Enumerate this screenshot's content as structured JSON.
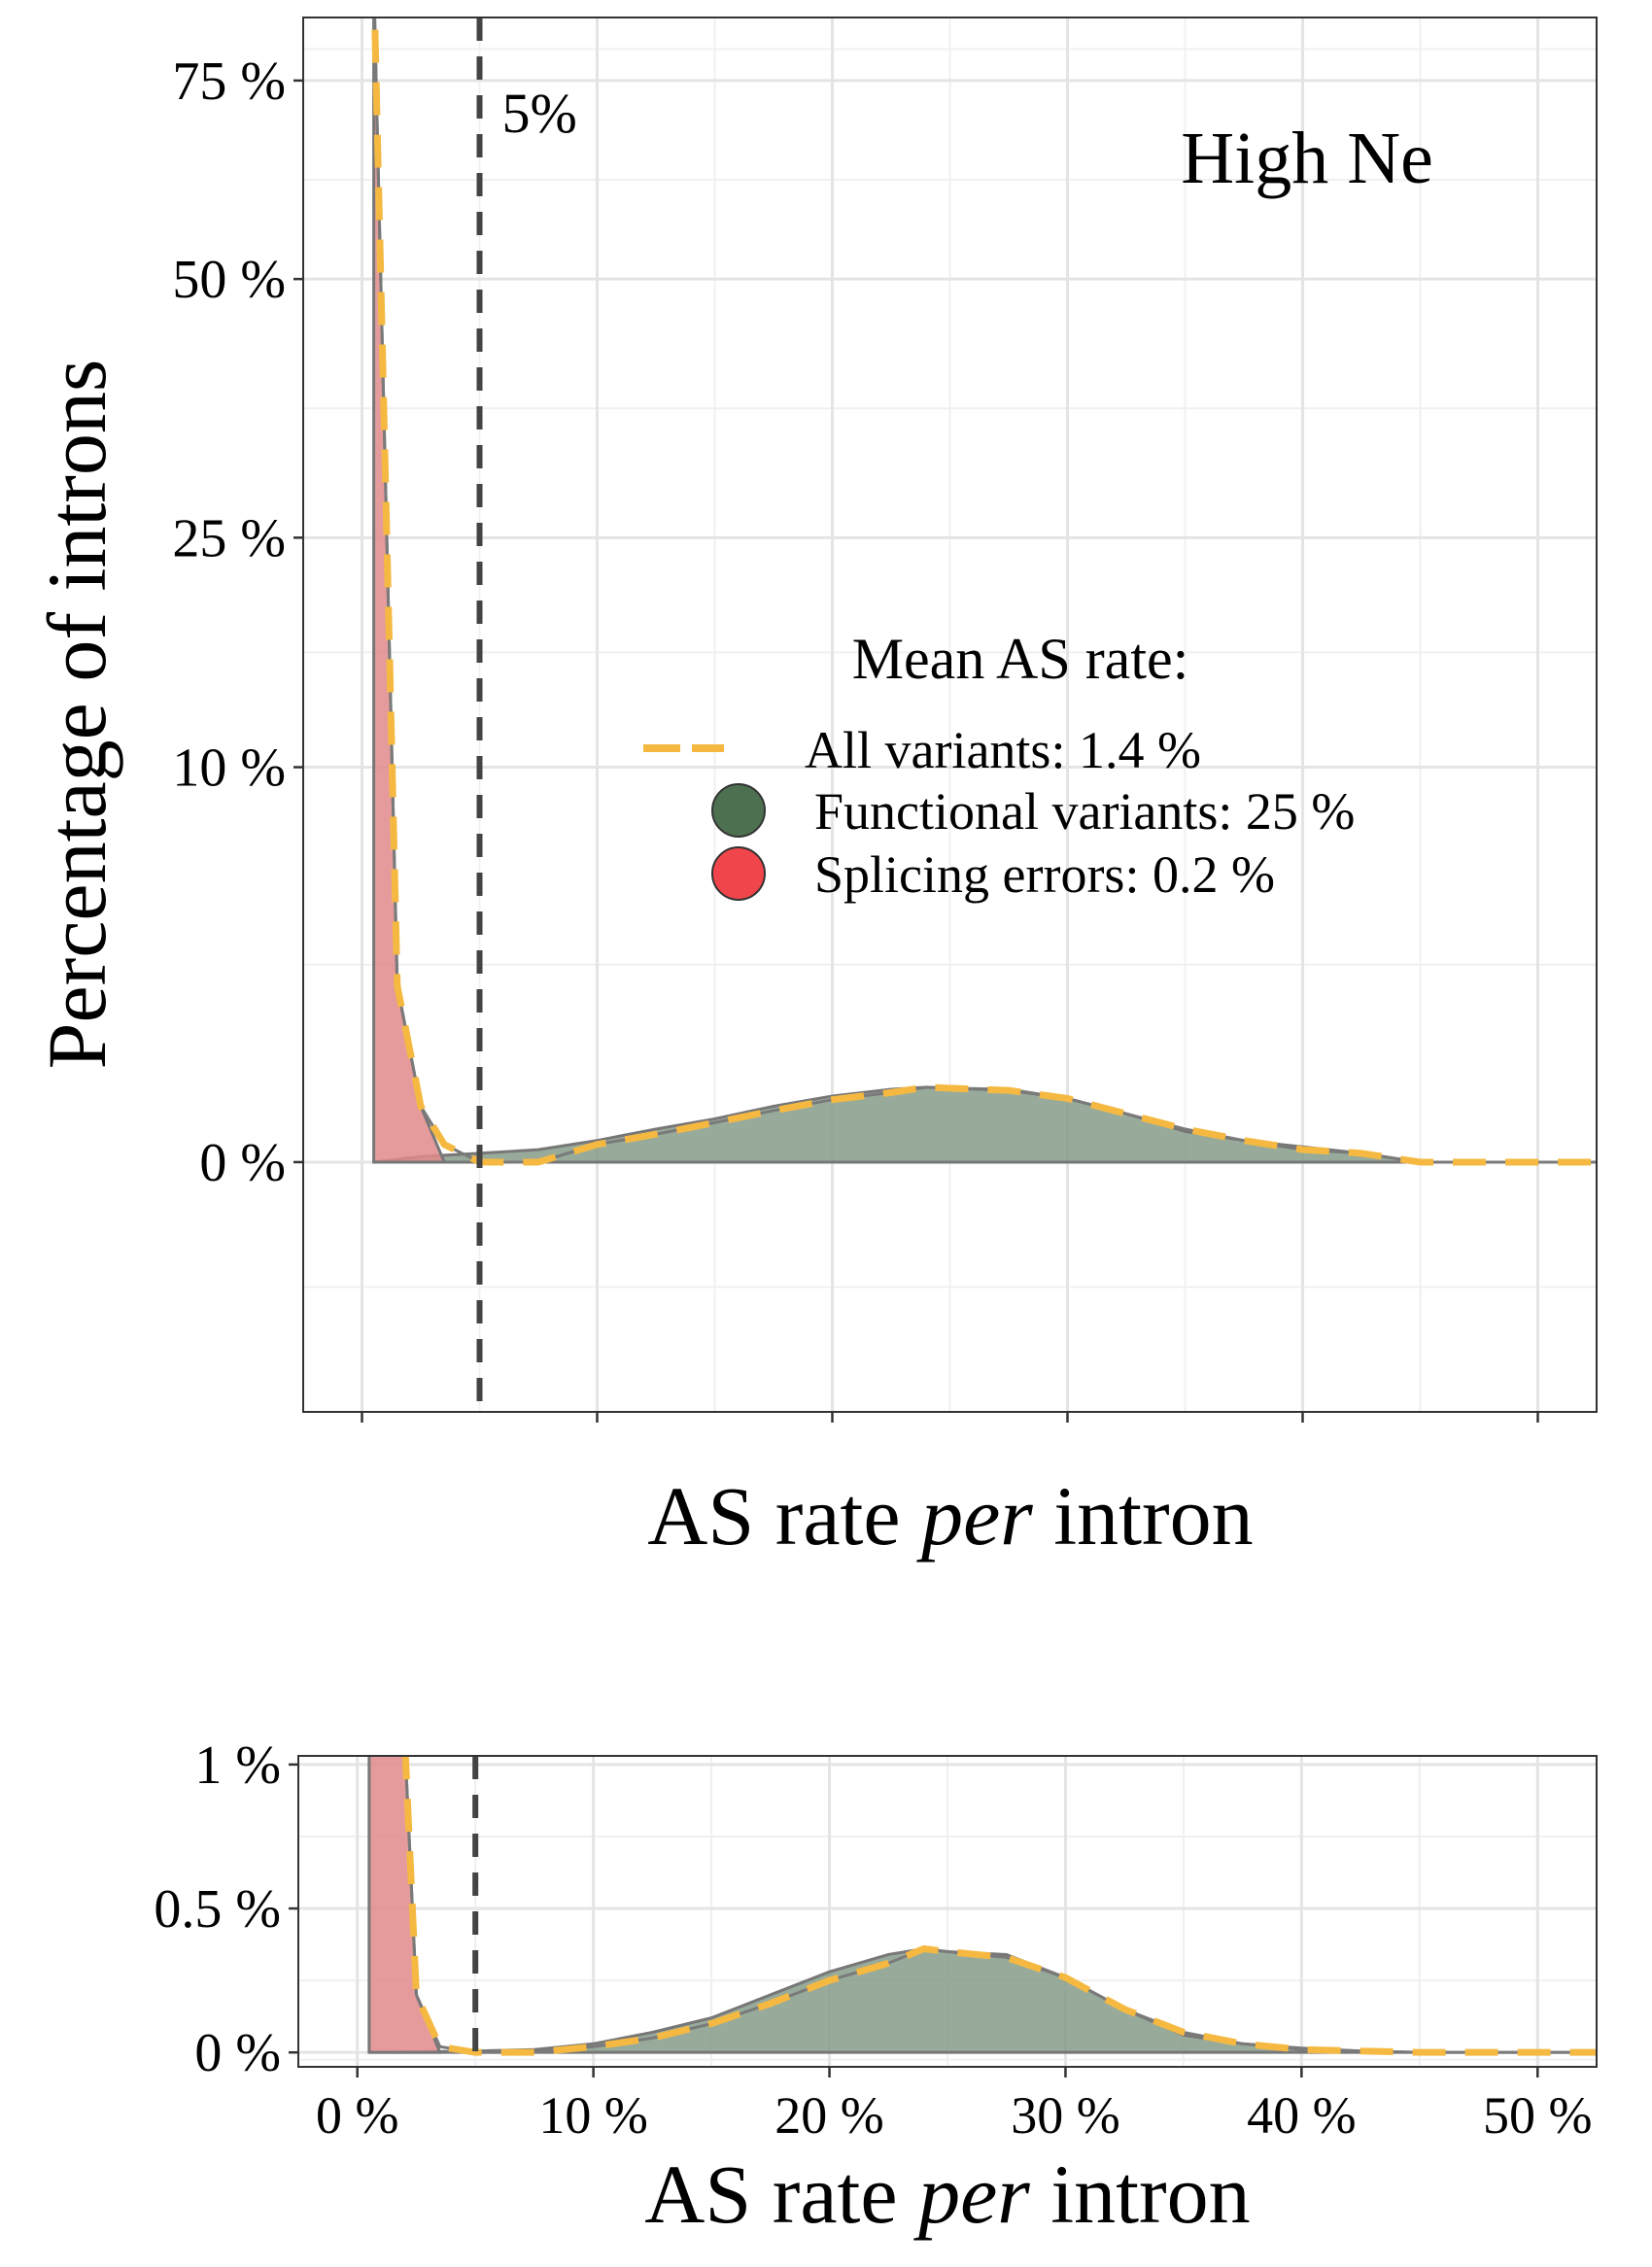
{
  "chart_data": [
    {
      "type": "area",
      "panel": "main",
      "annotation": "High Ne",
      "xlabel": {
        "main": "AS rate ",
        "italic": "per",
        "rest": " intron"
      },
      "ylabel": "Percentage of introns",
      "xlim": [
        -2.5,
        52.5
      ],
      "ylim": [
        -4,
        84
      ],
      "y_transform": "sqrt",
      "x_ticks": [
        0,
        10,
        20,
        30,
        40,
        50
      ],
      "x_tick_labels_shown": false,
      "y_ticks": [
        0,
        10,
        25,
        50,
        75
      ],
      "y_tick_labels": [
        "0 %",
        "10 %",
        "25 %",
        "50 %",
        "75 %"
      ],
      "vline": {
        "x": 5,
        "label": "5%"
      },
      "grid": true,
      "legend": {
        "title": "Mean AS rate:",
        "entries": [
          {
            "label": "All variants: 1.4 %",
            "color": "#f5b942",
            "style": "dashed"
          },
          {
            "label": "Functional variants: 25 %",
            "color": "#4d7150",
            "style": "point"
          },
          {
            "label": "Splicing errors: 0.2 %",
            "color": "#f0454a",
            "style": "point"
          }
        ]
      },
      "series": [
        {
          "name": "Splicing errors",
          "color": "#e0898b",
          "x": [
            0.5,
            1.5,
            2.5,
            3.5
          ],
          "y": [
            90,
            2,
            0.2,
            0
          ]
        },
        {
          "name": "Functional variants",
          "color": "#869c89",
          "x": [
            0.5,
            2.5,
            5,
            7.5,
            10,
            12.5,
            15,
            17.5,
            20,
            22.5,
            24,
            25,
            27.5,
            30,
            32.5,
            35,
            37.5,
            40,
            42.5,
            45,
            47.5,
            50,
            52.5
          ],
          "y": [
            0,
            0.002,
            0.005,
            0.01,
            0.03,
            0.07,
            0.12,
            0.2,
            0.28,
            0.34,
            0.36,
            0.35,
            0.34,
            0.26,
            0.15,
            0.06,
            0.03,
            0.015,
            0.005,
            0,
            0,
            0,
            0
          ]
        },
        {
          "name": "All variants",
          "color": "#f5b942",
          "x": [
            0.5,
            1.5,
            2.5,
            3.5,
            5,
            7.5,
            10,
            12.5,
            15,
            17.5,
            20,
            22.5,
            24,
            25,
            27.5,
            30,
            32.5,
            35,
            37.5,
            40,
            42.5,
            45,
            47.5,
            50,
            52.5
          ],
          "y": [
            90,
            2,
            0.2,
            0.02,
            0,
            0,
            0.02,
            0.05,
            0.1,
            0.17,
            0.25,
            0.31,
            0.36,
            0.35,
            0.33,
            0.26,
            0.15,
            0.07,
            0.03,
            0.01,
            0.005,
            0,
            0,
            0,
            0
          ]
        }
      ]
    },
    {
      "type": "area",
      "panel": "zoom",
      "xlabel": {
        "main": "AS rate ",
        "italic": "per",
        "rest": " intron"
      },
      "xlim": [
        -2.5,
        52.5
      ],
      "ylim": [
        -0.05,
        1.03
      ],
      "x_ticks": [
        0,
        10,
        20,
        30,
        40,
        50
      ],
      "x_tick_labels": [
        "0 %",
        "10 %",
        "20 %",
        "30 %",
        "40 %",
        "50 %"
      ],
      "y_ticks": [
        0,
        0.5,
        1
      ],
      "y_tick_labels": [
        "0 %",
        "0.5 %",
        "1 %"
      ],
      "vline": {
        "x": 5
      },
      "grid": true
    }
  ]
}
